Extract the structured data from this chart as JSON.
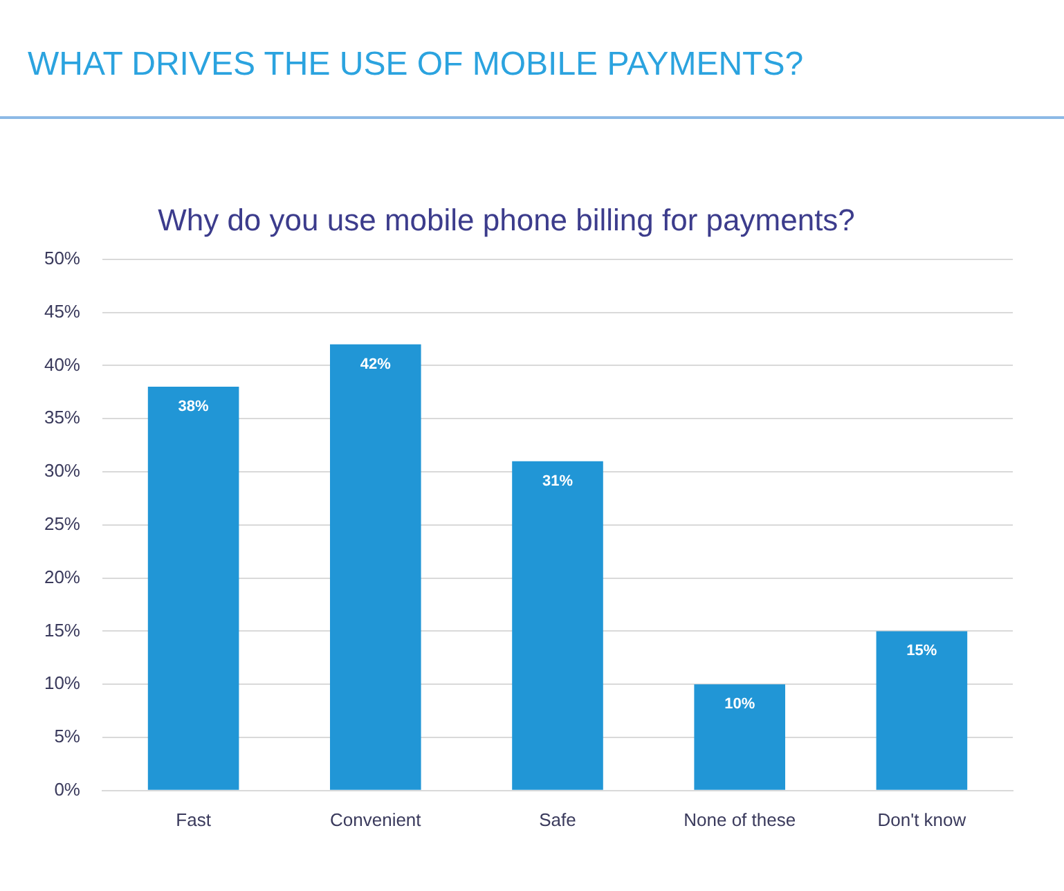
{
  "chart_data": {
    "type": "bar",
    "title": "WHAT DRIVES THE USE OF MOBILE PAYMENTS?",
    "subtitle": "Why do you use mobile phone billing for payments?",
    "categories": [
      "Fast",
      "Convenient",
      "Safe",
      "None of these",
      "Don't know"
    ],
    "values": [
      38,
      42,
      31,
      10,
      15
    ],
    "color": "#2196d6",
    "value_labels": [
      "38%",
      "42%",
      "31%",
      "10%",
      "15%"
    ],
    "ylim": [
      0,
      50
    ],
    "yticks": [
      {
        "value": 0,
        "label": "0%"
      },
      {
        "value": 5,
        "label": "5%"
      },
      {
        "value": 10,
        "label": "10%"
      },
      {
        "value": 15,
        "label": "15%"
      },
      {
        "value": 20,
        "label": "20%"
      },
      {
        "value": 25,
        "label": "25%"
      },
      {
        "value": 30,
        "label": "30%"
      },
      {
        "value": 35,
        "label": "35%"
      },
      {
        "value": 40,
        "label": "40%"
      },
      {
        "value": 45,
        "label": "45%"
      },
      {
        "value": 50,
        "label": "50%"
      }
    ],
    "grid": "y"
  }
}
